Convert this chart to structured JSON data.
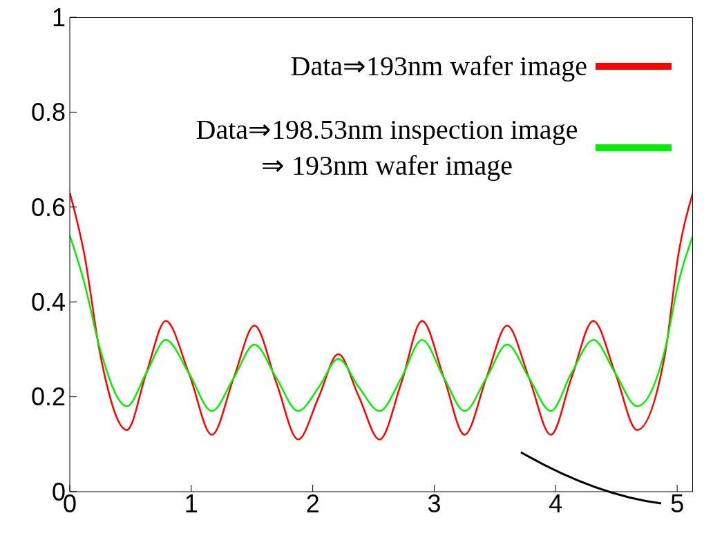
{
  "chart_data": {
    "type": "line",
    "legend": "top right",
    "grid": false,
    "marker": "none",
    "line_style": "solid",
    "xlim": [
      0,
      5.13
    ],
    "xticks": [
      0,
      1,
      2,
      3,
      4,
      5
    ],
    "ylim": [
      0,
      1
    ],
    "yticks": [
      0,
      0.2,
      0.4,
      0.6,
      0.8,
      1
    ],
    "series": [
      {
        "name": "Data⇒193nm wafer image",
        "color": "#ff0000",
        "x": [
          0,
          0.12,
          0.25,
          0.47,
          0.63,
          0.79,
          0.98,
          1.17,
          1.35,
          1.52,
          1.7,
          1.88,
          2.05,
          2.21,
          2.38,
          2.55,
          2.73,
          2.9,
          3.08,
          3.25,
          3.43,
          3.6,
          3.78,
          3.96,
          4.13,
          4.31,
          4.49,
          4.67,
          4.9,
          5.01,
          5.13
        ],
        "values": [
          0.63,
          0.5,
          0.29,
          0.13,
          0.25,
          0.36,
          0.25,
          0.12,
          0.24,
          0.35,
          0.23,
          0.11,
          0.2,
          0.29,
          0.2,
          0.11,
          0.23,
          0.36,
          0.24,
          0.12,
          0.24,
          0.35,
          0.24,
          0.12,
          0.24,
          0.36,
          0.25,
          0.13,
          0.29,
          0.5,
          0.63
        ]
      },
      {
        "name": "Data⇒198.53nm inspection image ⇒ 193nm wafer image",
        "color": "#00ee00",
        "x": [
          0,
          0.12,
          0.25,
          0.47,
          0.63,
          0.79,
          0.98,
          1.17,
          1.35,
          1.52,
          1.7,
          1.88,
          2.05,
          2.21,
          2.38,
          2.55,
          2.73,
          2.9,
          3.08,
          3.25,
          3.43,
          3.6,
          3.78,
          3.96,
          4.13,
          4.31,
          4.49,
          4.67,
          4.9,
          5.01,
          5.13
        ],
        "values": [
          0.54,
          0.44,
          0.3,
          0.18,
          0.25,
          0.32,
          0.25,
          0.17,
          0.24,
          0.31,
          0.24,
          0.17,
          0.22,
          0.28,
          0.22,
          0.17,
          0.24,
          0.32,
          0.24,
          0.17,
          0.24,
          0.31,
          0.24,
          0.17,
          0.25,
          0.32,
          0.25,
          0.18,
          0.3,
          0.44,
          0.54
        ]
      }
    ]
  }
}
